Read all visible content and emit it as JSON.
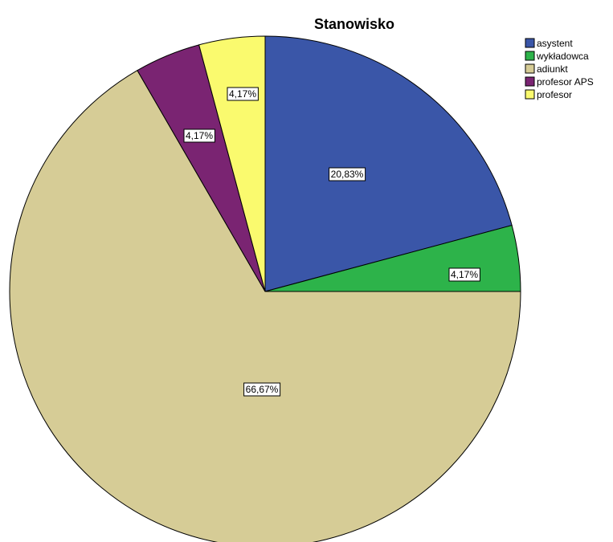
{
  "chart_data": {
    "type": "pie",
    "title": "Stanowisko",
    "legend_position": "top-right",
    "start_angle_deg": 0,
    "direction": "clockwise",
    "slices": [
      {
        "label": "asystent",
        "value": 20.83,
        "display": "20,83%",
        "color": "#3a56a8"
      },
      {
        "label": "wykładowca",
        "value": 4.17,
        "display": "4,17%",
        "color": "#2db34a"
      },
      {
        "label": "adiunkt",
        "value": 66.67,
        "display": "66,67%",
        "color": "#d6cc96"
      },
      {
        "label": "profesor APS",
        "value": 4.17,
        "display": "4,17%",
        "color": "#7a2472"
      },
      {
        "label": "profesor",
        "value": 4.17,
        "display": "4,17%",
        "color": "#fafa6e"
      }
    ]
  }
}
